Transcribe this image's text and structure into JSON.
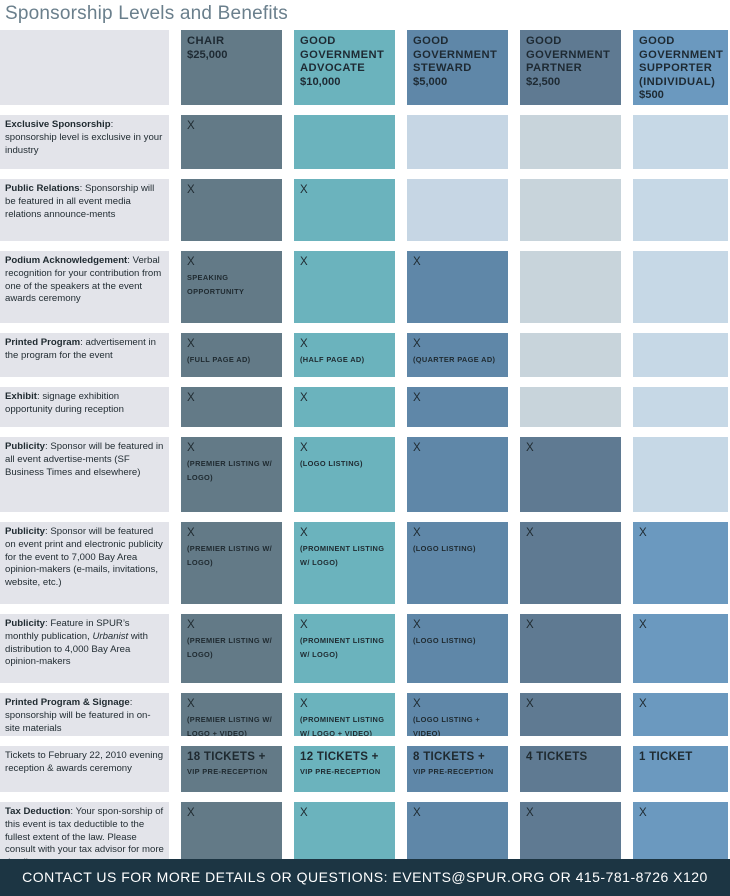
{
  "page": {
    "title": "Sponsorship Levels and Benefits",
    "footer": "CONTACT US FOR MORE DETAILS OR QUESTIONS: EVENTS@SPUR.ORG OR 415-781-8726 X120"
  },
  "levels": [
    {
      "name": "CHAIR",
      "price": "$25,000"
    },
    {
      "name": "GOOD GOVERNMENT ADVOCATE",
      "price": "$10,000"
    },
    {
      "name": "GOOD GOVERNMENT STEWARD",
      "price": "$5,000"
    },
    {
      "name": "GOOD GOVERNMENT PARTNER",
      "price": "$2,500"
    },
    {
      "name": "GOOD GOVERNMENT SUPPORTER (INDIVIDUAL)",
      "price": "$500"
    }
  ],
  "rows": [
    {
      "title": "Exclusive Sponsorship",
      "desc": "sponsorship level is exclusive in your industry",
      "cells": [
        {
          "x": "X"
        },
        null,
        null,
        null,
        null
      ]
    },
    {
      "title": "Public Relations",
      "desc": "Sponsorship will be featured in all event media relations announce-ments",
      "cells": [
        {
          "x": "X"
        },
        {
          "x": "X"
        },
        null,
        null,
        null
      ]
    },
    {
      "title": "Podium Acknowledgement",
      "desc": "Verbal recognition for your contribution from one of the speakers at the event awards ceremony",
      "cells": [
        {
          "x": "X",
          "note": "SPEAKING OPPORTUNITY"
        },
        {
          "x": "X"
        },
        {
          "x": "X"
        },
        null,
        null
      ]
    },
    {
      "title": "Printed Program",
      "desc": "advertisement in the program for the event",
      "cells": [
        {
          "x": "X",
          "note": "(FULL PAGE AD)"
        },
        {
          "x": "X",
          "note": "(HALF PAGE AD)"
        },
        {
          "x": "X",
          "note": "(QUARTER  PAGE AD)"
        },
        null,
        null
      ]
    },
    {
      "title": "Exhibit",
      "desc": "signage exhibition opportunity during reception",
      "cells": [
        {
          "x": "X"
        },
        {
          "x": "X"
        },
        {
          "x": "X"
        },
        null,
        null
      ]
    },
    {
      "title": "Publicity",
      "desc": "Sponsor will be featured in all event advertise-ments (SF Business Times and elsewhere)",
      "cells": [
        {
          "x": "X",
          "note": "(PREMIER LISTING W/ LOGO)"
        },
        {
          "x": "X",
          "note": "(LOGO LISTING)"
        },
        {
          "x": "X"
        },
        {
          "x": "X"
        },
        null
      ]
    },
    {
      "title": "Publicity",
      "desc": "Sponsor will be featured on event print and electronic publicity for the event to 7,000 Bay Area opinion-makers (e-mails, invitations, website, etc.)",
      "cells": [
        {
          "x": "X",
          "note": "(PREMIER LISTING W/ LOGO)"
        },
        {
          "x": "X",
          "note": "(PROMINENT LISTING W/ LOGO)"
        },
        {
          "x": "X",
          "note": "(LOGO LISTING)"
        },
        {
          "x": "X"
        },
        {
          "x": "X"
        }
      ]
    },
    {
      "title": "Publicity",
      "desc_before": "Feature in SPUR’s monthly publication, ",
      "desc_em": "Urbanist",
      "desc_after": " with distribution to 4,000 Bay Area opinion-makers",
      "cells": [
        {
          "x": "X",
          "note": "(PREMIER LISTING W/ LOGO)"
        },
        {
          "x": "X",
          "note": "(PROMINENT LISTING W/ LOGO)"
        },
        {
          "x": "X",
          "note": "(LOGO LISTING)"
        },
        {
          "x": "X"
        },
        {
          "x": "X"
        }
      ]
    },
    {
      "title": "Printed Program & Signage",
      "desc": "sponsorship will be featured in on-site materials",
      "cells": [
        {
          "x": "X",
          "note": "(PREMIER LISTING W/ LOGO + VIDEO)"
        },
        {
          "x": "X",
          "note": "(PROMINENT LISTING W/ LOGO + VIDEO)"
        },
        {
          "x": "X",
          "note": "(LOGO LISTING + VIDEO)"
        },
        {
          "x": "X"
        },
        {
          "x": "X"
        }
      ]
    },
    {
      "title": "",
      "desc": "Tickets to February 22, 2010 evening reception & awards ceremony",
      "cells": [
        {
          "big": "18 TICKETS +",
          "small": "VIP PRE-RECEPTION"
        },
        {
          "big": "12 TICKETS +",
          "small": "VIP PRE-RECEPTION"
        },
        {
          "big": "8 TICKETS +",
          "small": "VIP PRE-RECEPTION"
        },
        {
          "big": "4 TICKETS"
        },
        {
          "big": "1 TICKET"
        }
      ]
    },
    {
      "title": "Tax Deduction",
      "desc": "Your spon-sorship of this event is tax deductible to the fullest extent of the law. Please consult with your tax advisor for more details.",
      "cells": [
        {
          "x": "X"
        },
        {
          "x": "X"
        },
        {
          "x": "X"
        },
        {
          "x": "X"
        },
        {
          "x": "X"
        }
      ]
    }
  ],
  "colors": {
    "chair": "#637a87",
    "advocate": "#6bb3bd",
    "steward": "#5f87a8",
    "partner": "#5f7a92",
    "supporter": "#6b99bf",
    "label_bg": "#e3e4ea",
    "footer_bg": "#1c3543"
  }
}
